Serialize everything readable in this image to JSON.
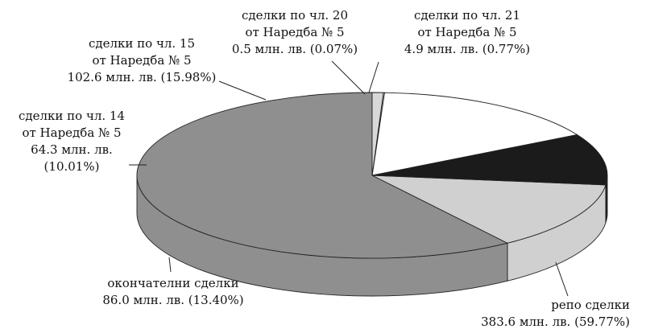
{
  "chart_data": {
    "type": "pie",
    "title": "",
    "style": "3d",
    "colors": {
      "repo": "#8f8f8f",
      "final": "#d0d0d0",
      "ch14": "#1b1b1b",
      "ch15": "#ffffff",
      "ch20": "#ffffff",
      "ch21": "#d8d8d8"
    },
    "slices": [
      {
        "key": "repo",
        "value": 383.6,
        "percent": 59.77,
        "label_lines": [
          "репо сделки",
          "383.6 млн. лв. (59.77%)"
        ]
      },
      {
        "key": "final",
        "value": 86.0,
        "percent": 13.4,
        "label_lines": [
          "окончателни сделки",
          "86.0 млн. лв. (13.40%)"
        ]
      },
      {
        "key": "ch14",
        "value": 64.3,
        "percent": 10.01,
        "label_lines": [
          "сделки по чл. 14",
          "от Наредба № 5",
          "64.3 млн. лв.",
          "(10.01%)"
        ]
      },
      {
        "key": "ch15",
        "value": 102.6,
        "percent": 15.98,
        "label_lines": [
          "сделки по чл. 15",
          "от Наредба № 5",
          "102.6 млн. лв. (15.98%)"
        ]
      },
      {
        "key": "ch20",
        "value": 0.5,
        "percent": 0.07,
        "label_lines": [
          "сделки по чл. 20",
          "от Наредба № 5",
          "0.5 млн. лв. (0.07%)"
        ]
      },
      {
        "key": "ch21",
        "value": 4.9,
        "percent": 0.77,
        "label_lines": [
          "сделки по чл. 21",
          "от Наредба № 5",
          "4.9 млн. лв. (0.77%)"
        ]
      }
    ]
  }
}
